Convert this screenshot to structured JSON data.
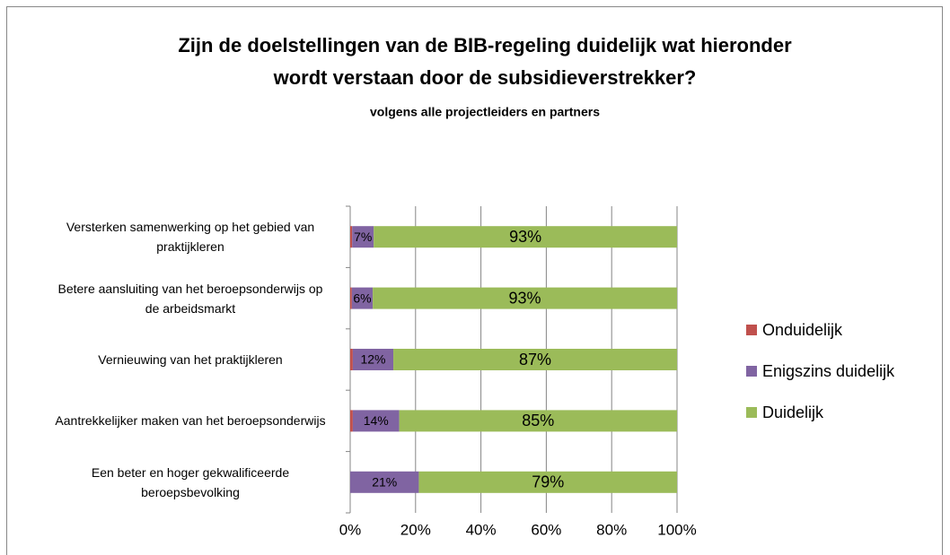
{
  "chart_data": {
    "type": "stacked-barh",
    "title": "Zijn de doelstellingen van de BIB-regeling duidelijk wat hieronder wordt verstaan door de subsidieverstrekker?",
    "subtitle": "volgens alle projectleiders en partners",
    "categories": [
      "Versterken samenwerking op het gebied van praktijkleren",
      "Betere aansluiting van het beroepsonderwijs op de arbeidsmarkt",
      "Vernieuwing van het praktijkleren",
      "Aantrekkelijker maken van het beroepsonderwijs",
      "Een beter en hoger gekwalificeerde beroepsbevolking"
    ],
    "series": [
      {
        "name": "Onduidelijk",
        "color": "#c0504d",
        "values": [
          0.6,
          0.5,
          0.8,
          0.8,
          0
        ]
      },
      {
        "name": "Enigszins duidelijk",
        "color": "#8064a2",
        "values": [
          6.6,
          6.4,
          12.4,
          14.2,
          21
        ],
        "value_labels": [
          "7%",
          "6%",
          "12%",
          "14%",
          "21%"
        ]
      },
      {
        "name": "Duidelijk",
        "color": "#9bbb59",
        "values": [
          92.8,
          93.1,
          86.8,
          85.0,
          79
        ],
        "value_labels": [
          "93%",
          "93%",
          "87%",
          "85%",
          "79%"
        ]
      }
    ],
    "xlim": [
      0,
      100
    ],
    "xticks": [
      {
        "value": 0,
        "label": "0%"
      },
      {
        "value": 20,
        "label": "20%"
      },
      {
        "value": 40,
        "label": "40%"
      },
      {
        "value": 60,
        "label": "60%"
      },
      {
        "value": 80,
        "label": "80%"
      },
      {
        "value": 100,
        "label": "100%"
      }
    ],
    "grid": true,
    "legend": "right"
  }
}
